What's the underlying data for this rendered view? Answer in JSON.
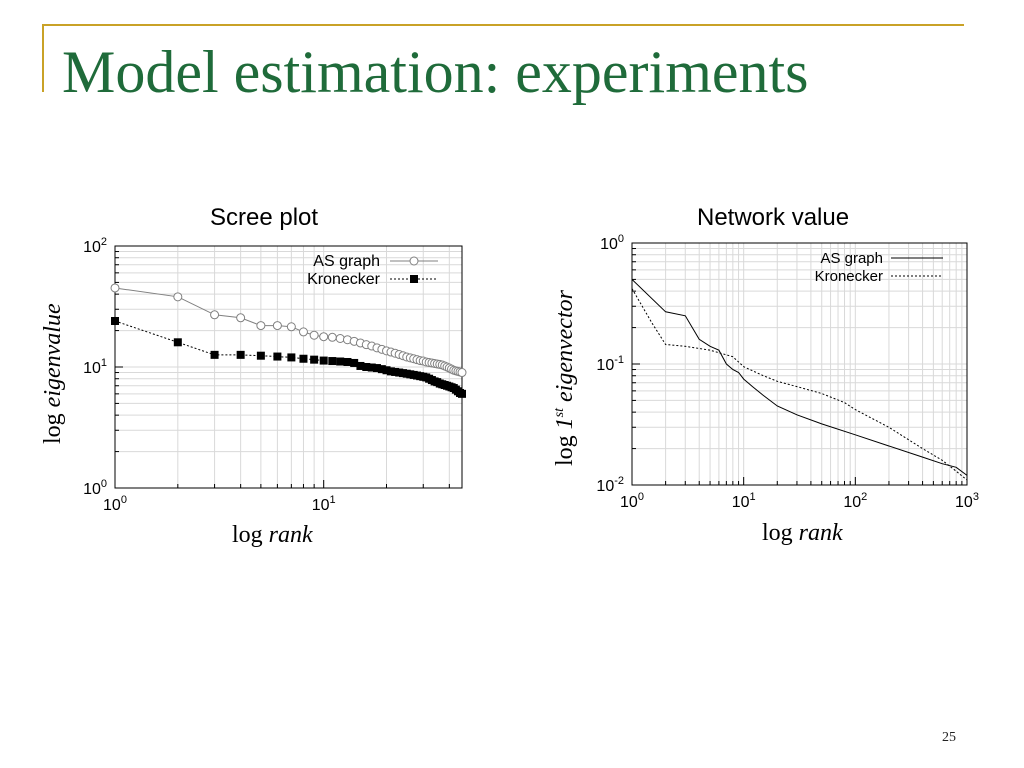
{
  "slide": {
    "title": "Model estimation: experiments",
    "page_number": "25"
  },
  "chart_data": [
    {
      "type": "scatter",
      "title": "Scree plot",
      "xlabel_prefix": "log",
      "xlabel_var": "rank",
      "ylabel_prefix": "log",
      "ylabel_var": "eigenvalue",
      "xscale": "log",
      "yscale": "log",
      "xlim": [
        1,
        46
      ],
      "ylim": [
        1,
        100
      ],
      "x_ticks": [
        {
          "value": 1,
          "base": "10",
          "exp": "0"
        },
        {
          "value": 10,
          "base": "10",
          "exp": "1"
        }
      ],
      "y_ticks": [
        {
          "value": 1,
          "base": "10",
          "exp": "0"
        },
        {
          "value": 10,
          "base": "10",
          "exp": "1"
        },
        {
          "value": 100,
          "base": "10",
          "exp": "2"
        }
      ],
      "grid": true,
      "legend_position": "top-right",
      "series": [
        {
          "name": "AS graph",
          "marker": "open-circle",
          "color": "#808080",
          "x": [
            1,
            2,
            3,
            4,
            5,
            6,
            7,
            8,
            9,
            10,
            11,
            12,
            13,
            14,
            15,
            16,
            17,
            18,
            19,
            20,
            21,
            22,
            23,
            24,
            25,
            26,
            27,
            28,
            29,
            30,
            31,
            32,
            33,
            34,
            35,
            36,
            37,
            38,
            39,
            40,
            41,
            42,
            43,
            44,
            45,
            46
          ],
          "y": [
            45,
            38,
            27,
            25.5,
            22,
            22,
            21.5,
            19.5,
            18.3,
            17.8,
            17.6,
            17.2,
            16.8,
            16.3,
            15.8,
            15.3,
            14.9,
            14.4,
            14.0,
            13.6,
            13.3,
            13.0,
            12.7,
            12.4,
            12.1,
            11.9,
            11.7,
            11.5,
            11.3,
            11.2,
            11.0,
            10.9,
            10.8,
            10.7,
            10.6,
            10.5,
            10.4,
            10.2,
            10.0,
            9.8,
            9.6,
            9.4,
            9.3,
            9.2,
            9.1,
            9.0
          ]
        },
        {
          "name": "Kronecker",
          "marker": "filled-square",
          "color": "#000000",
          "x": [
            1,
            2,
            3,
            4,
            5,
            6,
            7,
            8,
            9,
            10,
            11,
            12,
            13,
            14,
            15,
            16,
            17,
            18,
            19,
            20,
            21,
            22,
            23,
            24,
            25,
            26,
            27,
            28,
            29,
            30,
            31,
            32,
            33,
            34,
            35,
            36,
            37,
            38,
            39,
            40,
            41,
            42,
            43,
            44,
            45,
            46
          ],
          "y": [
            24,
            16,
            12.6,
            12.6,
            12.4,
            12.2,
            12.0,
            11.7,
            11.5,
            11.3,
            11.2,
            11.1,
            11.0,
            10.8,
            10.2,
            10.0,
            9.9,
            9.8,
            9.6,
            9.4,
            9.2,
            9.1,
            9.0,
            8.9,
            8.8,
            8.7,
            8.6,
            8.5,
            8.4,
            8.3,
            8.2,
            8.0,
            7.8,
            7.6,
            7.5,
            7.3,
            7.2,
            7.1,
            7.0,
            6.9,
            6.8,
            6.7,
            6.5,
            6.3,
            6.1,
            6.0
          ]
        }
      ]
    },
    {
      "type": "line",
      "title": "Network value",
      "xlabel_prefix": "log",
      "xlabel_var": "rank",
      "ylabel_prefix": "log",
      "ylabel_sup_num": "1",
      "ylabel_sup": "st",
      "ylabel_var": "eigenvector",
      "xscale": "log",
      "yscale": "log",
      "xlim": [
        1,
        1000
      ],
      "ylim": [
        0.01,
        1
      ],
      "x_ticks": [
        {
          "value": 1,
          "base": "10",
          "exp": "0"
        },
        {
          "value": 10,
          "base": "10",
          "exp": "1"
        },
        {
          "value": 100,
          "base": "10",
          "exp": "2"
        },
        {
          "value": 1000,
          "base": "10",
          "exp": "3"
        }
      ],
      "y_ticks": [
        {
          "value": 0.01,
          "base": "10",
          "exp": "-2"
        },
        {
          "value": 0.1,
          "base": "10",
          "exp": "-1"
        },
        {
          "value": 1,
          "base": "10",
          "exp": "0"
        }
      ],
      "grid": true,
      "legend_position": "top-right",
      "series": [
        {
          "name": "AS graph",
          "style": "solid",
          "color": "#000000",
          "x": [
            1,
            2,
            3,
            4,
            5,
            6,
            7,
            8,
            9,
            10,
            12,
            15,
            20,
            30,
            50,
            100,
            200,
            400,
            600,
            800,
            1000
          ],
          "y": [
            0.5,
            0.27,
            0.25,
            0.16,
            0.14,
            0.13,
            0.1,
            0.09,
            0.085,
            0.075,
            0.065,
            0.055,
            0.045,
            0.038,
            0.032,
            0.026,
            0.021,
            0.017,
            0.015,
            0.014,
            0.012
          ]
        },
        {
          "name": "Kronecker",
          "style": "dotted",
          "color": "#000000",
          "x": [
            1,
            1.5,
            2,
            3,
            5,
            8,
            10,
            15,
            20,
            30,
            50,
            80,
            100,
            200,
            400,
            600,
            800,
            1000
          ],
          "y": [
            0.42,
            0.22,
            0.145,
            0.14,
            0.13,
            0.115,
            0.095,
            0.08,
            0.072,
            0.065,
            0.057,
            0.048,
            0.042,
            0.03,
            0.02,
            0.016,
            0.013,
            0.011
          ]
        }
      ]
    }
  ]
}
